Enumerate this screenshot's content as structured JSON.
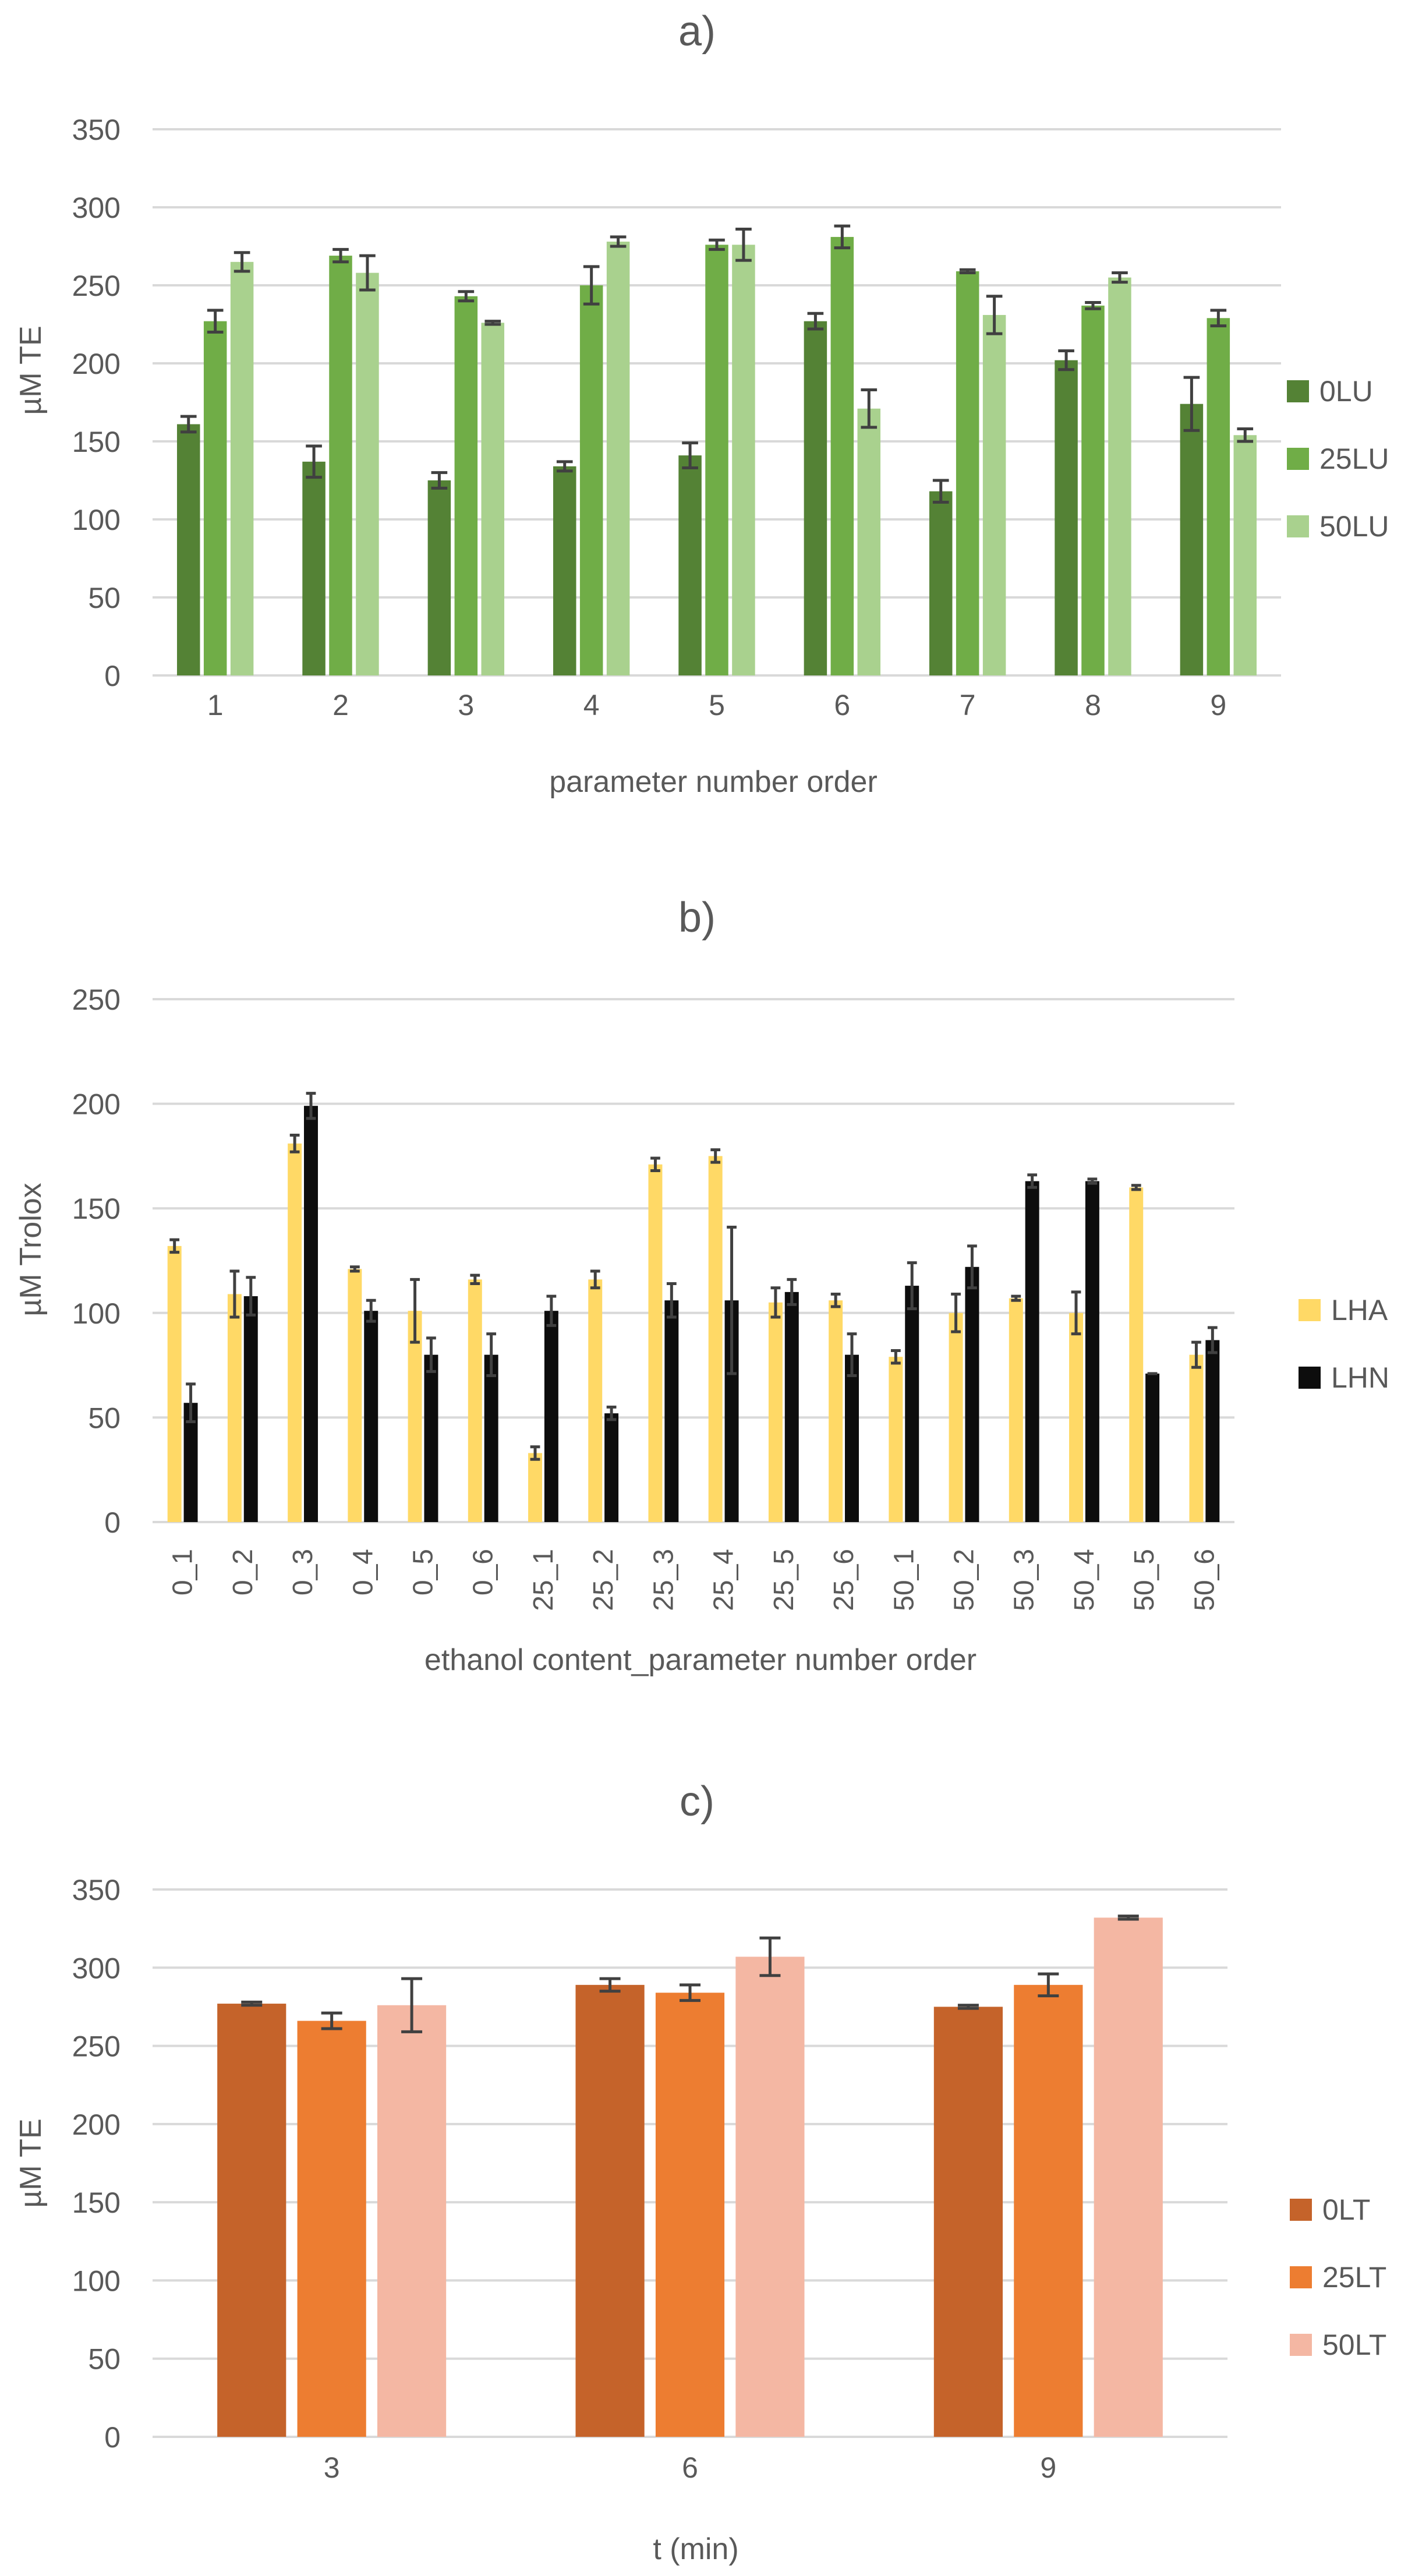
{
  "colors": {
    "axis_text": "#595959",
    "gridline": "#d9d9d9",
    "errorbar": "#404040"
  },
  "chart_data": [
    {
      "id": "a",
      "type": "bar",
      "title": "a)",
      "xlabel": "parameter number order",
      "ylabel": "µM TE",
      "ylim": [
        0,
        350
      ],
      "yticks": [
        0,
        50,
        100,
        150,
        200,
        250,
        300,
        350
      ],
      "grid": true,
      "legend_position": "right",
      "categories": [
        "1",
        "2",
        "3",
        "4",
        "5",
        "6",
        "7",
        "8",
        "9"
      ],
      "series": [
        {
          "name": "0LU",
          "color": "#548235",
          "values": [
            161,
            137,
            125,
            134,
            141,
            227,
            118,
            202,
            174
          ],
          "errors": [
            5,
            10,
            5,
            3,
            8,
            5,
            7,
            6,
            17
          ]
        },
        {
          "name": "25LU",
          "color": "#70ad47",
          "values": [
            227,
            269,
            243,
            250,
            276,
            281,
            259,
            237,
            229
          ],
          "errors": [
            7,
            4,
            3,
            12,
            3,
            7,
            1,
            2,
            5
          ]
        },
        {
          "name": "50LU",
          "color": "#a9d18e",
          "values": [
            265,
            258,
            226,
            278,
            276,
            171,
            231,
            255,
            154
          ],
          "errors": [
            6,
            11,
            1,
            3,
            10,
            12,
            12,
            3,
            4
          ]
        }
      ]
    },
    {
      "id": "b",
      "type": "bar",
      "title": "b)",
      "xlabel": "ethanol content_parameter number order",
      "ylabel": "µM Trolox",
      "ylim": [
        0,
        250
      ],
      "yticks": [
        0,
        50,
        100,
        150,
        200,
        250
      ],
      "grid": true,
      "legend_position": "right",
      "categories": [
        "0_1",
        "0_2",
        "0_3",
        "0_4",
        "0_5",
        "0_6",
        "25_1",
        "25_2",
        "25_3",
        "25_4",
        "25_5",
        "25_6",
        "50_1",
        "50_2",
        "50_3",
        "50_4",
        "50_5",
        "50_6"
      ],
      "series": [
        {
          "name": "LHA",
          "color": "#ffd966",
          "values": [
            132,
            109,
            181,
            121,
            101,
            116,
            33,
            116,
            171,
            175,
            105,
            106,
            79,
            100,
            107,
            100,
            160,
            80
          ],
          "errors": [
            3,
            11,
            4,
            1,
            15,
            2,
            3,
            4,
            3,
            3,
            7,
            3,
            3,
            9,
            1,
            10,
            1,
            6
          ]
        },
        {
          "name": "LHN",
          "color": "#0d0d0d",
          "values": [
            57,
            108,
            199,
            101,
            80,
            80,
            101,
            52,
            106,
            106,
            110,
            80,
            113,
            122,
            163,
            163,
            71,
            87
          ],
          "errors": [
            9,
            9,
            6,
            5,
            8,
            10,
            7,
            3,
            8,
            35,
            6,
            10,
            11,
            10,
            3,
            1,
            0,
            6
          ]
        }
      ]
    },
    {
      "id": "c",
      "type": "bar",
      "title": "c)",
      "xlabel": "t (min)",
      "ylabel": "µM TE",
      "ylim": [
        0,
        350
      ],
      "yticks": [
        0,
        50,
        100,
        150,
        200,
        250,
        300,
        350
      ],
      "grid": true,
      "legend_position": "right",
      "categories": [
        "3",
        "6",
        "9"
      ],
      "series": [
        {
          "name": "0LT",
          "color": "#c5632a",
          "values": [
            277,
            289,
            275
          ],
          "errors": [
            1,
            4,
            1
          ]
        },
        {
          "name": "25LT",
          "color": "#ed7d31",
          "values": [
            266,
            284,
            289
          ],
          "errors": [
            5,
            5,
            7
          ]
        },
        {
          "name": "50LT",
          "color": "#f4b7a3",
          "values": [
            276,
            307,
            332
          ],
          "errors": [
            17,
            12,
            1
          ]
        }
      ]
    }
  ]
}
